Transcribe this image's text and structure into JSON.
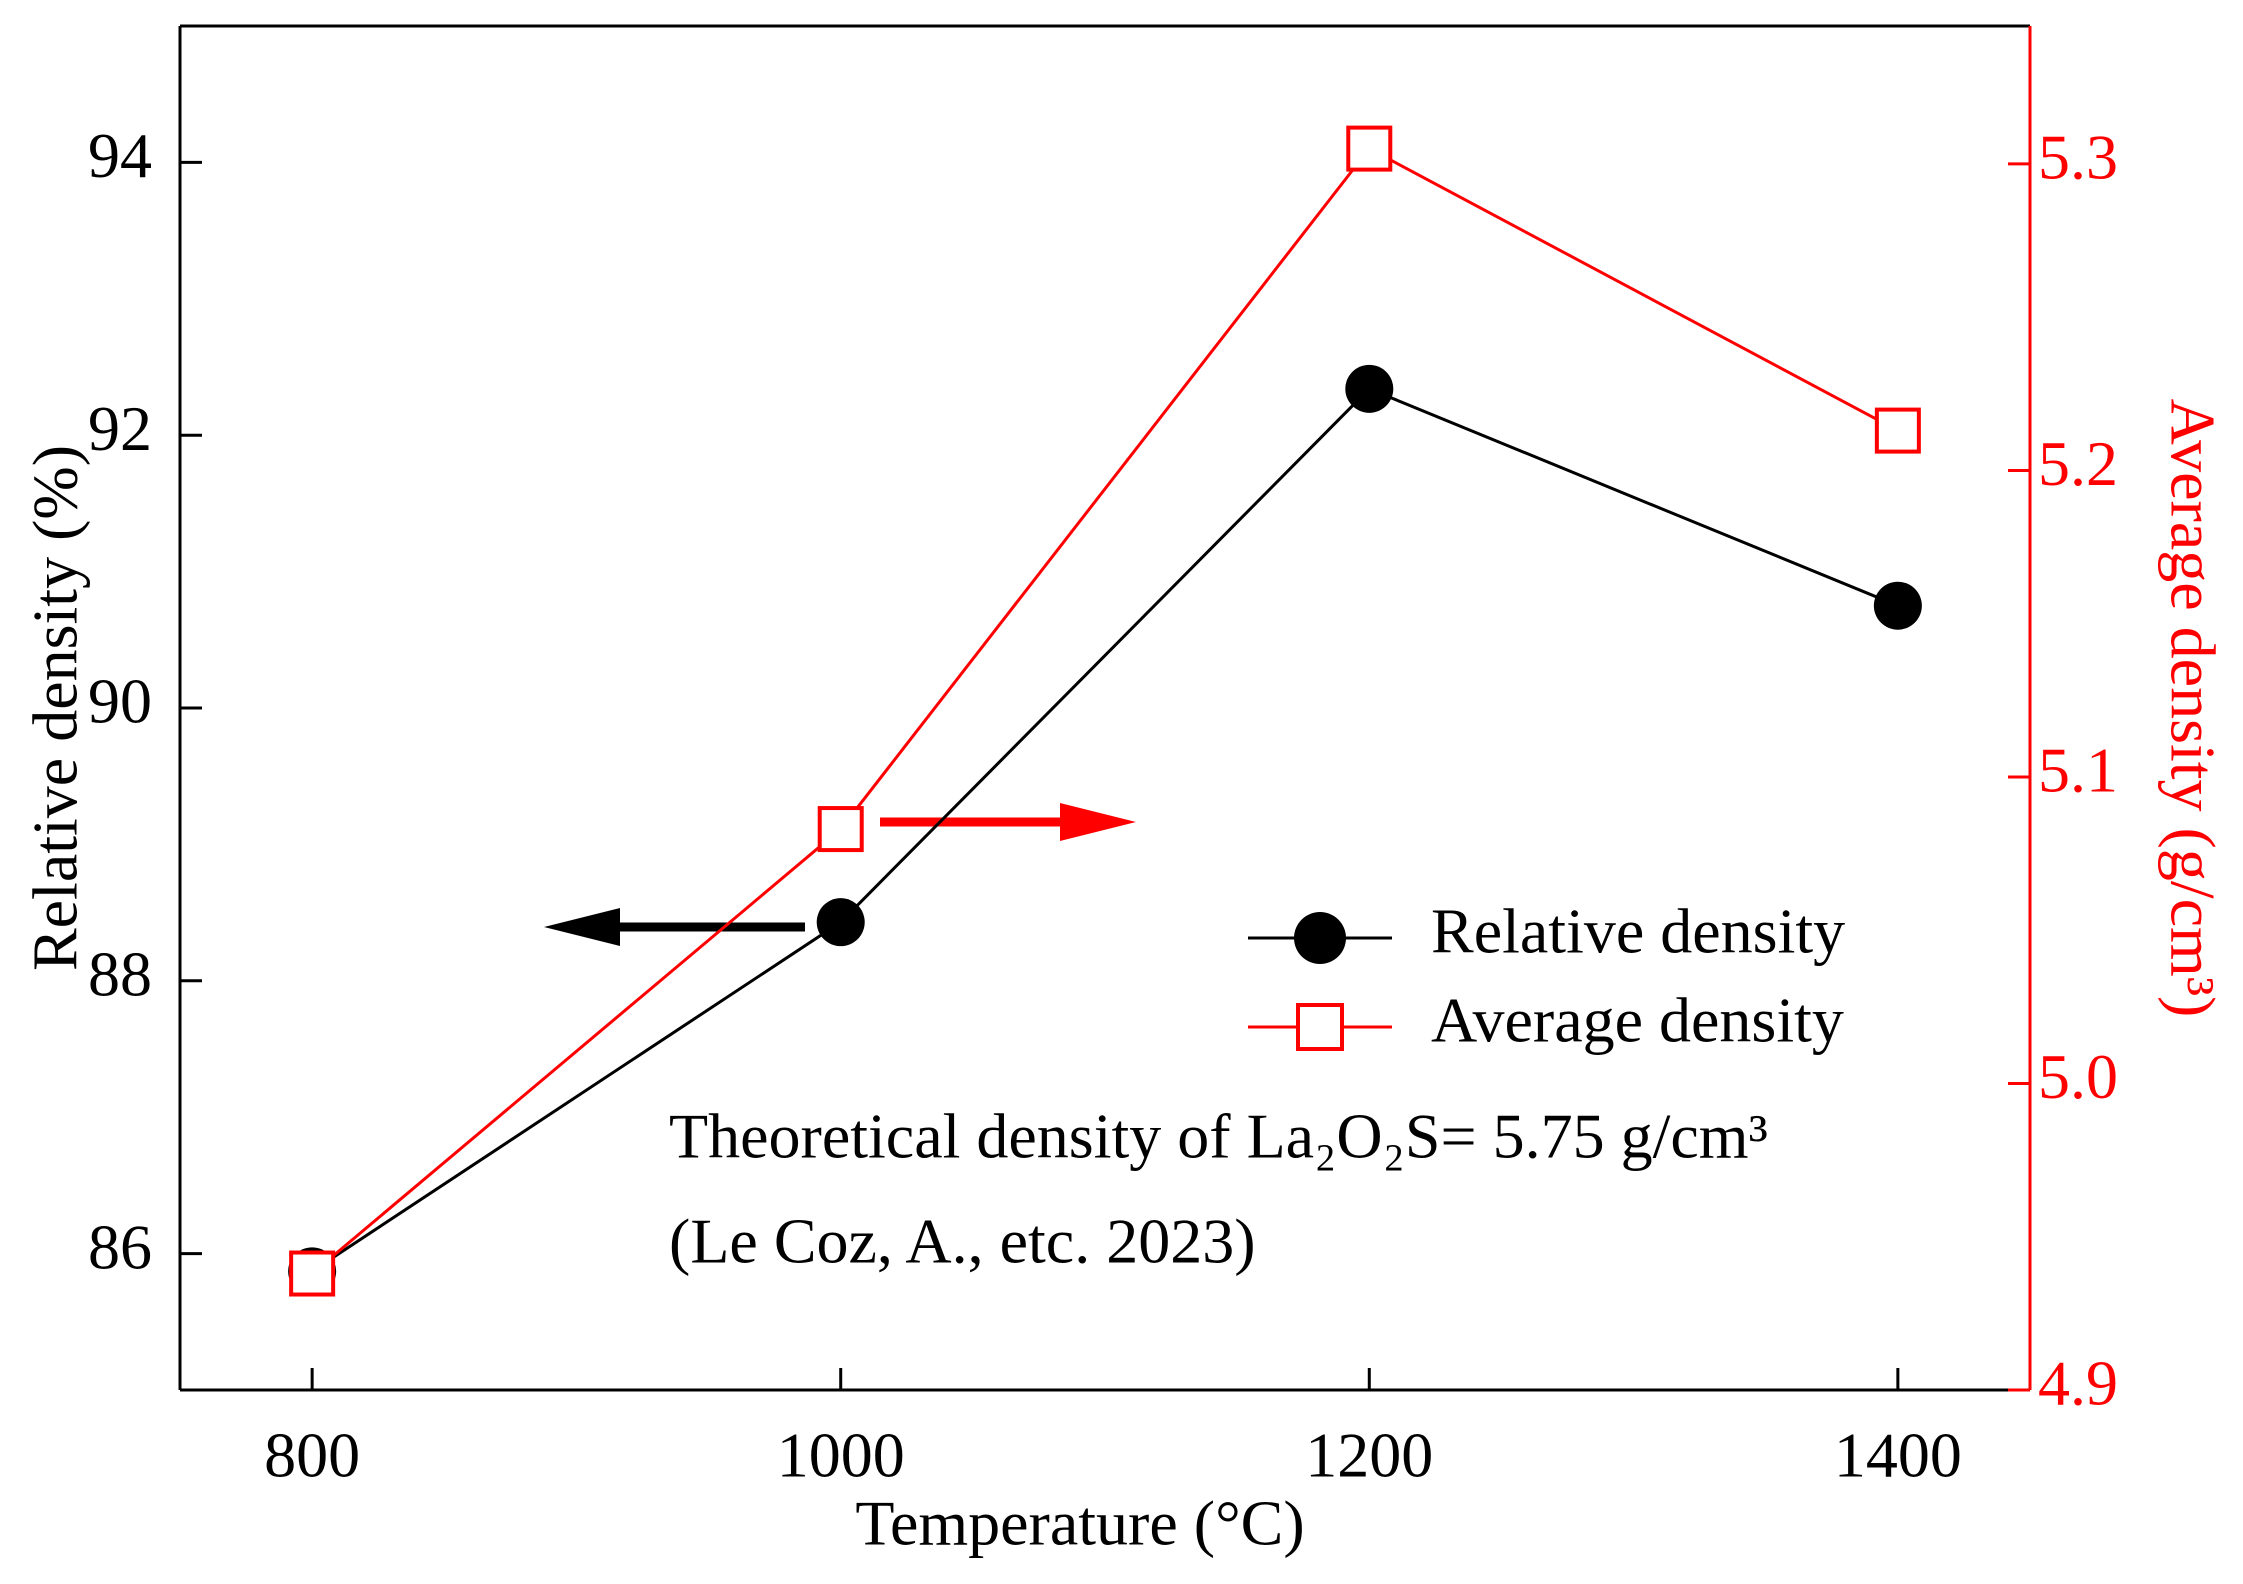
{
  "chart_data": {
    "type": "line",
    "x_label": "Temperature (°C)",
    "y_label": "Relative density (%)",
    "y2_label": "Average density (g/cm³)",
    "annotations": [
      "Theoretical density of La₂O₂S= 5.75 g/cm³",
      "(Le Coz, A., etc. 2023)"
    ],
    "x": [
      800,
      1000,
      1200,
      1400
    ],
    "xlim": [
      750,
      1450
    ],
    "xticks": [
      800,
      1000,
      1200,
      1400
    ],
    "ylim": [
      85,
      95
    ],
    "yticks": [
      86,
      88,
      90,
      92,
      94
    ],
    "y2lim": [
      4.9,
      5.345
    ],
    "y2ticks": [
      {
        "value": 4.9,
        "label": "4.9"
      },
      {
        "value": 5.0,
        "label": "5.0"
      },
      5.1,
      5.2,
      5.3
    ],
    "y2color": "#ff0000",
    "series": [
      {
        "name": "Relative density",
        "color": "#000000",
        "marker": "circle",
        "values": [
          85.87,
          88.43,
          92.34,
          90.75
        ]
      },
      {
        "name": "Average density",
        "color": "#ff0000",
        "marker": "square",
        "axis": "y2",
        "values": [
          4.938,
          5.083,
          5.305,
          5.213
        ]
      }
    ]
  }
}
